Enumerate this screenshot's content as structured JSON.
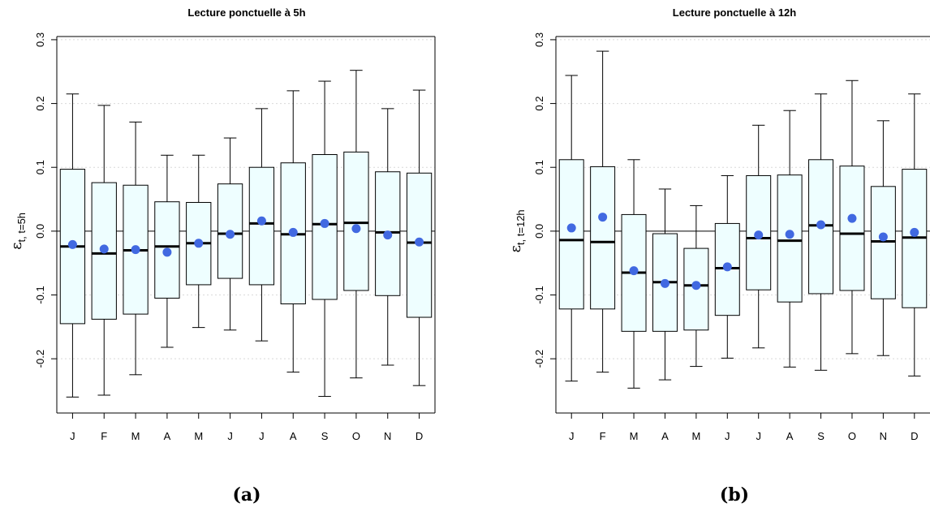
{
  "chart_data": [
    {
      "type": "box",
      "title": "Lecture ponctuelle à 5h",
      "ylabel_symbol": "ε",
      "ylabel_sub": "t, t=5h",
      "caption": "(a)",
      "ylim": [
        -0.285,
        0.305
      ],
      "yticks": [
        -0.2,
        -0.1,
        0.0,
        0.1,
        0.2,
        0.3
      ],
      "ytick_labels": [
        "-0.2",
        "-0.1",
        "0.0",
        "0.1",
        "0.2",
        "0.3"
      ],
      "hline": 0,
      "grid": "horizontal dotted",
      "categories": [
        "J",
        "F",
        "M",
        "A",
        "M",
        "J",
        "J",
        "A",
        "S",
        "O",
        "N",
        "D"
      ],
      "series": [
        {
          "stat": "whisker_low",
          "values": [
            -0.26,
            -0.257,
            -0.225,
            -0.182,
            -0.151,
            -0.155,
            -0.172,
            -0.221,
            -0.259,
            -0.23,
            -0.21,
            -0.242
          ]
        },
        {
          "stat": "q1",
          "values": [
            -0.145,
            -0.138,
            -0.13,
            -0.105,
            -0.084,
            -0.074,
            -0.084,
            -0.114,
            -0.107,
            -0.093,
            -0.101,
            -0.135
          ]
        },
        {
          "stat": "median",
          "values": [
            -0.024,
            -0.035,
            -0.03,
            -0.024,
            -0.019,
            -0.004,
            0.012,
            -0.005,
            0.011,
            0.013,
            -0.002,
            -0.018
          ]
        },
        {
          "stat": "q3",
          "values": [
            0.097,
            0.076,
            0.072,
            0.046,
            0.045,
            0.074,
            0.1,
            0.107,
            0.12,
            0.124,
            0.093,
            0.091
          ]
        },
        {
          "stat": "whisker_high",
          "values": [
            0.215,
            0.197,
            0.171,
            0.119,
            0.119,
            0.146,
            0.192,
            0.22,
            0.235,
            0.252,
            0.192,
            0.221
          ]
        },
        {
          "stat": "mean",
          "values": [
            -0.021,
            -0.028,
            -0.029,
            -0.033,
            -0.019,
            -0.005,
            0.016,
            -0.002,
            0.012,
            0.004,
            -0.006,
            -0.017
          ]
        }
      ]
    },
    {
      "type": "box",
      "title": "Lecture ponctuelle à 12h",
      "ylabel_symbol": "ε",
      "ylabel_sub": "t, t=12h",
      "caption": "(b)",
      "ylim": [
        -0.285,
        0.305
      ],
      "yticks": [
        -0.2,
        -0.1,
        0.0,
        0.1,
        0.2,
        0.3
      ],
      "ytick_labels": [
        "-0.2",
        "-0.1",
        "0.0",
        "0.1",
        "0.2",
        "0.3"
      ],
      "hline": 0,
      "grid": "horizontal dotted",
      "categories": [
        "J",
        "F",
        "M",
        "A",
        "M",
        "J",
        "J",
        "A",
        "S",
        "O",
        "N",
        "D"
      ],
      "series": [
        {
          "stat": "whisker_low",
          "values": [
            -0.235,
            -0.221,
            -0.246,
            -0.233,
            -0.212,
            -0.199,
            -0.183,
            -0.213,
            -0.218,
            -0.192,
            -0.195,
            -0.227
          ]
        },
        {
          "stat": "q1",
          "values": [
            -0.122,
            -0.122,
            -0.157,
            -0.157,
            -0.155,
            -0.132,
            -0.092,
            -0.111,
            -0.098,
            -0.093,
            -0.106,
            -0.12
          ]
        },
        {
          "stat": "median",
          "values": [
            -0.014,
            -0.017,
            -0.065,
            -0.08,
            -0.085,
            -0.058,
            -0.011,
            -0.015,
            0.009,
            -0.004,
            -0.016,
            -0.01
          ]
        },
        {
          "stat": "q3",
          "values": [
            0.112,
            0.101,
            0.026,
            -0.004,
            -0.027,
            0.012,
            0.087,
            0.088,
            0.112,
            0.102,
            0.07,
            0.097
          ]
        },
        {
          "stat": "whisker_high",
          "values": [
            0.244,
            0.282,
            0.112,
            0.066,
            0.04,
            0.087,
            0.166,
            0.189,
            0.215,
            0.236,
            0.173,
            0.215
          ]
        },
        {
          "stat": "mean",
          "values": [
            0.005,
            0.022,
            -0.062,
            -0.082,
            -0.085,
            -0.056,
            -0.006,
            -0.005,
            0.01,
            0.02,
            -0.009,
            -0.002
          ]
        }
      ]
    }
  ],
  "colors": {
    "box_fill": "#eefeff",
    "mean_dot": "#4169e1",
    "grid": "#d9d9d9",
    "line": "#000000"
  }
}
